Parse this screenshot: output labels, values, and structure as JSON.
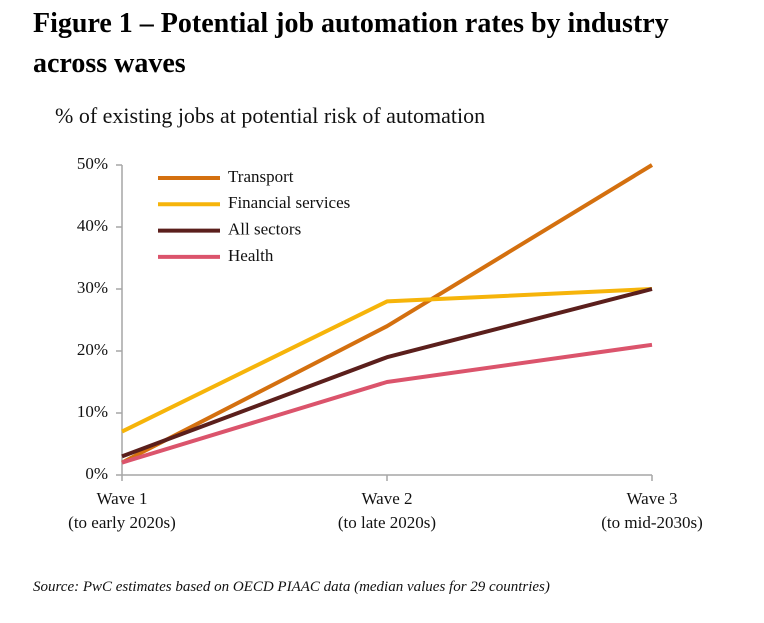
{
  "chart_data": {
    "type": "line",
    "title": "Figure 1 – Potential job automation rates  by industry across waves",
    "subtitle": "% of existing jobs at potential risk of automation",
    "source": "Source: PwC estimates based on OECD PIAAC data (median values for 29 countries)",
    "categories": [
      "Wave 1\n(to early 2020s)",
      "Wave 2\n(to late 2020s)",
      "Wave 3\n(to mid-2030s)"
    ],
    "series": [
      {
        "name": "Transport",
        "color": "#d4700f",
        "values": [
          2,
          24,
          50
        ]
      },
      {
        "name": "Financial services",
        "color": "#f6b40a",
        "values": [
          7,
          28,
          30
        ]
      },
      {
        "name": "All sectors",
        "color": "#5b1f1c",
        "values": [
          3,
          19,
          30
        ]
      },
      {
        "name": "Health",
        "color": "#db546c",
        "values": [
          2,
          15,
          21
        ]
      }
    ],
    "ylim": [
      0,
      50
    ],
    "yticks": [
      {
        "value": 0,
        "label": "0%"
      },
      {
        "value": 10,
        "label": "10%"
      },
      {
        "value": 20,
        "label": "20%"
      },
      {
        "value": 30,
        "label": "30%"
      },
      {
        "value": 40,
        "label": "40%"
      },
      {
        "value": 50,
        "label": "50%"
      }
    ],
    "grid": false,
    "legend": "upper-left"
  }
}
